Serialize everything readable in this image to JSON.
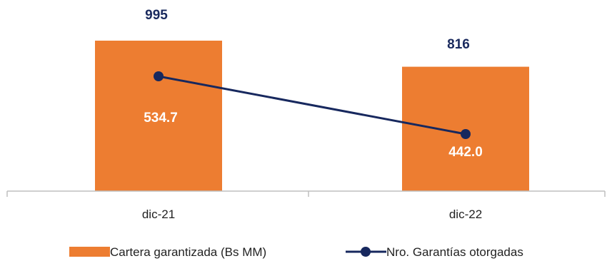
{
  "chart_data": {
    "type": "bar",
    "categories": [
      "dic-21",
      "dic-22"
    ],
    "series": [
      {
        "name": "Cartera garantizada (Bs MM)",
        "type": "bar",
        "values": [
          534.7,
          442.0
        ],
        "value_labels": [
          "534.7",
          "442.0"
        ],
        "color": "#ed7d31"
      },
      {
        "name": "Nro. Garantías otorgadas",
        "type": "line",
        "values": [
          995,
          816
        ],
        "value_labels": [
          "995",
          "816"
        ],
        "color": "#17285e"
      }
    ],
    "title": "",
    "xlabel": "",
    "ylabel": "",
    "legend_position": "bottom",
    "grid": false
  }
}
